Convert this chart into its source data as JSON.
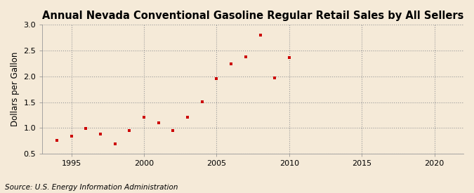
{
  "title": "Annual Nevada Conventional Gasoline Regular Retail Sales by All Sellers",
  "ylabel": "Dollars per Gallon",
  "source": "Source: U.S. Energy Information Administration",
  "background_color": "#f5ead8",
  "xlim": [
    1993,
    2022
  ],
  "ylim": [
    0.5,
    3.0
  ],
  "xticks": [
    1995,
    2000,
    2005,
    2010,
    2015,
    2020
  ],
  "yticks": [
    0.5,
    1.0,
    1.5,
    2.0,
    2.5,
    3.0
  ],
  "years": [
    1994,
    1995,
    1996,
    1997,
    1998,
    1999,
    2000,
    2001,
    2002,
    2003,
    2004,
    2005,
    2006,
    2007,
    2008,
    2009,
    2010
  ],
  "values": [
    0.755,
    0.835,
    0.99,
    0.875,
    0.685,
    0.945,
    1.205,
    1.1,
    0.945,
    1.205,
    1.51,
    1.96,
    2.24,
    2.375,
    2.8,
    1.97,
    2.37
  ],
  "marker_color": "#cc0000",
  "marker_size": 3.5,
  "grid_color": "#999999",
  "title_fontsize": 10.5,
  "label_fontsize": 8.5,
  "tick_fontsize": 8,
  "source_fontsize": 7.5
}
